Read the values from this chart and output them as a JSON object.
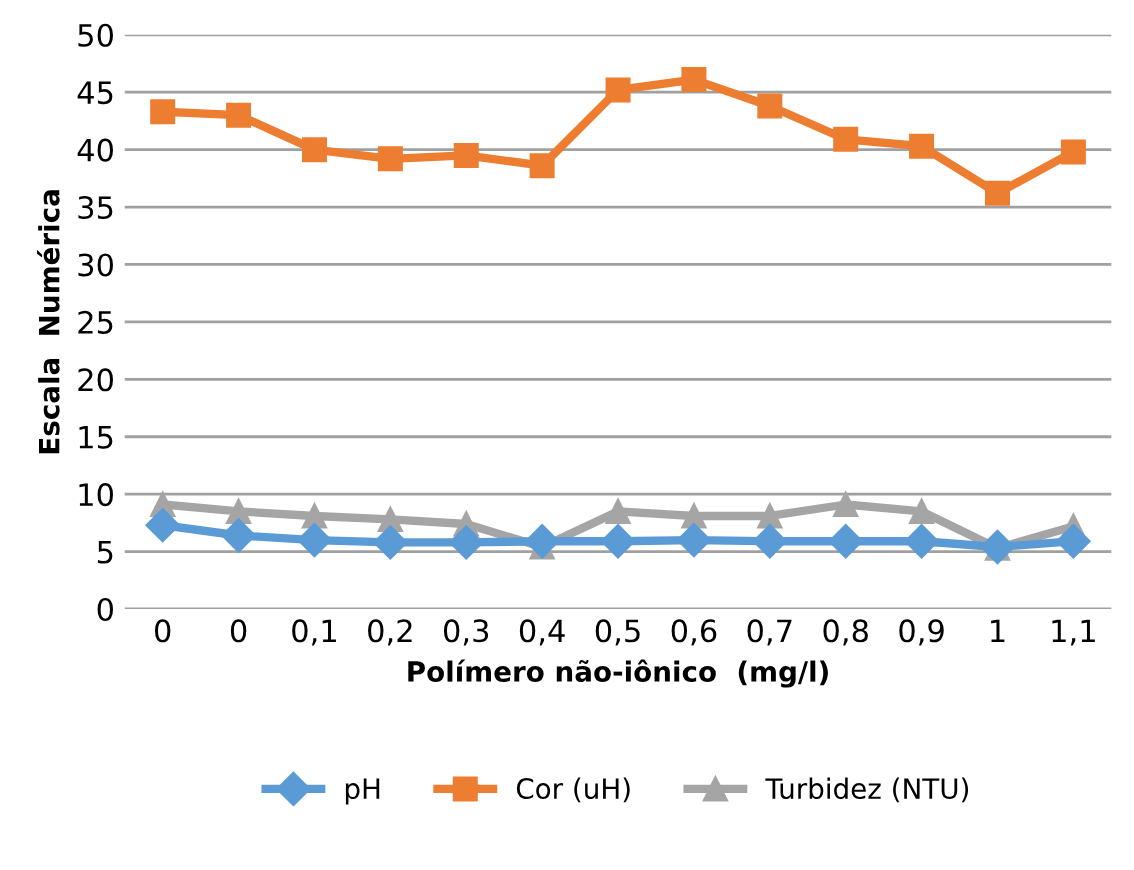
{
  "chart_data": {
    "type": "line",
    "xlabel": "Polímero não-iônico  (mg/l)",
    "ylabel": "Escala  Numérica",
    "categories": [
      "0",
      "0",
      "0,1",
      "0,2",
      "0,3",
      "0,4",
      "0,5",
      "0,6",
      "0,7",
      "0,8",
      "0,9",
      "1",
      "1,1"
    ],
    "series": [
      {
        "name": "pH",
        "color": "#5b9bd5",
        "marker": "diamond",
        "values": [
          7.3,
          6.4,
          6.0,
          5.8,
          5.8,
          5.9,
          5.9,
          6.0,
          5.9,
          5.9,
          5.9,
          5.4,
          5.9
        ]
      },
      {
        "name": "Cor (uH)",
        "color": "#ed7d31",
        "marker": "square",
        "values": [
          43.3,
          43.0,
          40.0,
          39.2,
          39.5,
          38.6,
          45.2,
          46.1,
          43.8,
          40.9,
          40.3,
          36.2,
          39.8
        ]
      },
      {
        "name": "Turbidez (NTU)",
        "color": "#a5a5a5",
        "marker": "triangle",
        "values": [
          9.1,
          8.5,
          8.1,
          7.8,
          7.4,
          5.4,
          8.5,
          8.1,
          8.1,
          9.1,
          8.5,
          5.3,
          7.2
        ]
      }
    ],
    "ylim": [
      0,
      50
    ],
    "yticks": [
      0,
      5,
      10,
      15,
      20,
      25,
      30,
      35,
      40,
      45,
      50
    ],
    "grid": "y",
    "legend": "bottom"
  }
}
